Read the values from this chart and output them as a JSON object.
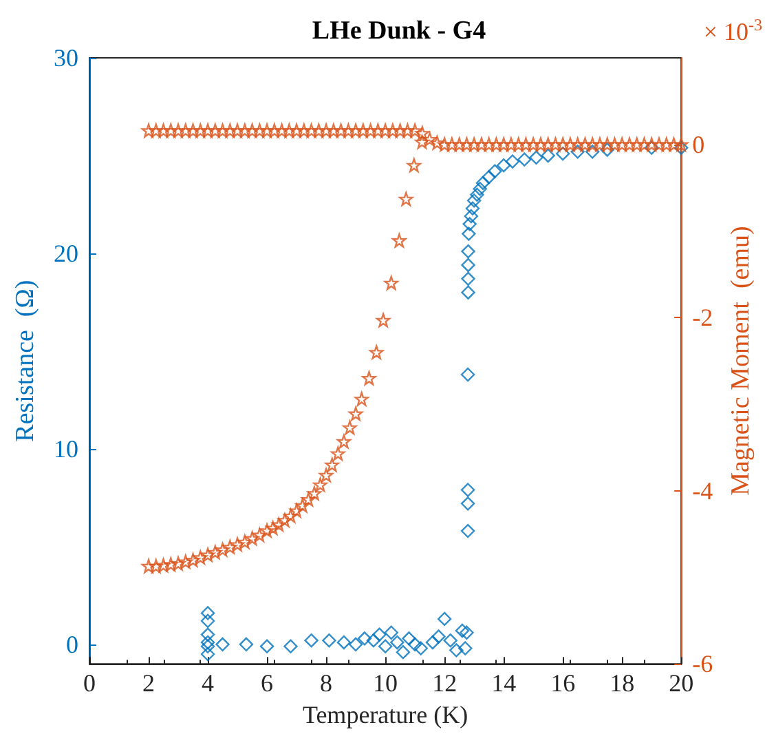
{
  "chart_data": {
    "type": "scatter",
    "title": "LHe Dunk - G4",
    "xlabel": "Temperature (K)",
    "ylabel": "Resistance  (Ω)",
    "y2label": "Magnetic Moment  (emu)",
    "annotations": [
      "× 10$^{-3}$"
    ],
    "xlim": [
      0,
      20
    ],
    "xticks": [
      0,
      2,
      4,
      6,
      8,
      10,
      12,
      14,
      16,
      18,
      20
    ],
    "ylim": [
      -1,
      30
    ],
    "yticks": [
      0,
      10,
      20,
      30
    ],
    "y2lim": [
      -6,
      1
    ],
    "y2ticks": [
      -6,
      -4,
      -2,
      0
    ],
    "grid": false,
    "series": [
      {
        "color": "#0072bd",
        "marker": "diamond",
        "x": [
          4,
          4,
          4,
          4,
          4,
          4,
          4.5,
          5.3,
          6,
          6.8,
          7.5,
          8.1,
          8.6,
          9,
          9.3,
          9.6,
          9.8,
          10,
          10.2,
          10.4,
          10.6,
          10.8,
          11,
          11.2,
          11.6,
          11.8,
          12,
          12.2,
          12.4,
          12.6,
          12.7,
          12.75,
          12.79,
          12.79,
          12.79,
          12.79,
          12.8,
          12.8,
          12.8,
          12.8,
          12.82,
          12.85,
          12.9,
          12.95,
          13,
          13.1,
          13.2,
          13.3,
          13.5,
          13.7,
          14,
          14.3,
          14.7,
          15.1,
          15.5,
          16,
          16.5,
          17,
          17.5,
          19,
          20
        ],
        "values": [
          1.6,
          1.2,
          0.5,
          0.1,
          -0.1,
          -0.5,
          0,
          0,
          -0.1,
          -0.1,
          0.2,
          0.2,
          0.1,
          0,
          0.3,
          0.2,
          0.5,
          -0.1,
          0.6,
          0.1,
          -0.4,
          0.3,
          0,
          -0.2,
          0.1,
          0.4,
          1.3,
          0.2,
          -0.3,
          0.7,
          -0.2,
          0.6,
          5.8,
          7.2,
          7.9,
          13.8,
          18,
          18.7,
          19.4,
          20.1,
          21,
          21.5,
          21.9,
          22.3,
          22.7,
          23,
          23.3,
          23.6,
          23.9,
          24.2,
          24.5,
          24.7,
          24.8,
          24.9,
          25,
          25.1,
          25.2,
          25.2,
          25.3,
          25.4,
          25.4
        ]
      },
      {
        "color": "#d95319",
        "marker": "star",
        "axis": "y2",
        "x": [
          2,
          2.25,
          2.5,
          2.75,
          3,
          3.25,
          3.5,
          3.75,
          4,
          4.25,
          4.5,
          4.75,
          5,
          5.25,
          5.5,
          5.75,
          6,
          6.25,
          6.5,
          6.75,
          7,
          7.25,
          7.5,
          7.75,
          8,
          8.25,
          8.5,
          8.75,
          9,
          9.25,
          9.5,
          9.75,
          10,
          10.25,
          10.5,
          10.75,
          11,
          11.25,
          11.5,
          11.75,
          12,
          12.25,
          12.5,
          12.75,
          13,
          13.25,
          13.5,
          13.75,
          14,
          14.25,
          14.5,
          14.75,
          15,
          15.25,
          15.5,
          15.75,
          16,
          16.25,
          16.5,
          16.75,
          17,
          17.25,
          17.5,
          17.75,
          18,
          18.25,
          18.5,
          18.75,
          19,
          19.25,
          19.5,
          19.75,
          20
        ],
        "values": [
          0.16,
          0.16,
          0.16,
          0.16,
          0.16,
          0.16,
          0.16,
          0.16,
          0.16,
          0.16,
          0.16,
          0.16,
          0.16,
          0.16,
          0.16,
          0.16,
          0.16,
          0.16,
          0.16,
          0.16,
          0.16,
          0.16,
          0.16,
          0.16,
          0.16,
          0.16,
          0.16,
          0.16,
          0.16,
          0.16,
          0.16,
          0.16,
          0.16,
          0.16,
          0.16,
          0.16,
          0.16,
          0.13,
          0.06,
          0.02,
          0,
          0,
          0,
          0,
          0,
          0,
          0,
          0,
          0,
          0,
          0,
          0,
          0,
          0,
          0,
          0,
          0,
          0,
          0,
          0,
          0,
          0,
          0,
          0,
          0,
          0,
          0,
          0,
          0,
          0,
          0,
          0,
          0
        ]
      },
      {
        "color": "#d95319",
        "marker": "star",
        "axis": "y2",
        "x": [
          2,
          2.25,
          2.5,
          2.75,
          3,
          3.25,
          3.5,
          3.75,
          4,
          4.25,
          4.5,
          4.75,
          5,
          5.25,
          5.5,
          5.75,
          6,
          6.2,
          6.4,
          6.6,
          6.8,
          7,
          7.2,
          7.4,
          7.6,
          7.8,
          8,
          8.2,
          8.4,
          8.6,
          8.8,
          9,
          9.2,
          9.45,
          9.7,
          9.93,
          10.2,
          10.47,
          10.7,
          10.97,
          11.24
        ],
        "values": [
          -4.87,
          -4.87,
          -4.86,
          -4.85,
          -4.84,
          -4.82,
          -4.8,
          -4.77,
          -4.74,
          -4.71,
          -4.68,
          -4.65,
          -4.62,
          -4.59,
          -4.55,
          -4.51,
          -4.46,
          -4.43,
          -4.39,
          -4.34,
          -4.29,
          -4.23,
          -4.17,
          -4.1,
          -4.03,
          -3.93,
          -3.82,
          -3.7,
          -3.57,
          -3.43,
          -3.27,
          -3.11,
          -2.94,
          -2.7,
          -2.4,
          -2.03,
          -1.6,
          -1.11,
          -0.63,
          -0.24,
          0.03
        ]
      }
    ]
  }
}
